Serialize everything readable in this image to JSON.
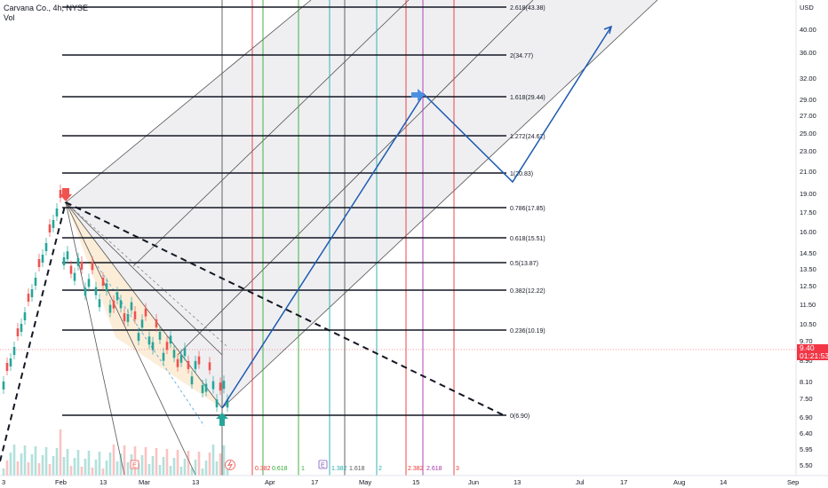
{
  "header": {
    "symbol": "Carvana Co., 4h, NYSE",
    "indicator": "Vol"
  },
  "price_axis": {
    "currency": "USD",
    "ticks": [
      "40.00",
      "36.00",
      "32.00",
      "29.00",
      "27.00",
      "25.00",
      "23.00",
      "21.00",
      "19.00",
      "17.50",
      "16.00",
      "14.50",
      "13.50",
      "12.50",
      "11.50",
      "10.50",
      "9.70",
      "8.90",
      "8.10",
      "7.50",
      "6.90",
      "6.40",
      "5.95",
      "5.50"
    ],
    "current_price": "9.40",
    "countdown": "01:21:53"
  },
  "time_axis": {
    "ticks": [
      "3",
      "Feb",
      "13",
      "Mar",
      "13",
      "Apr",
      "17",
      "May",
      "15",
      "Jun",
      "13",
      "Jul",
      "17",
      "Aug",
      "14",
      "Sep"
    ]
  },
  "fib_extension": [
    "0(6.90)",
    "0.236(10.19)",
    "0.382(12.22)",
    "0.5(13.87)",
    "0.618(15.51)",
    "0.786(17.85)",
    "1(20.83)",
    "1.272(24.62)",
    "1.618(29.44)",
    "2(34.77)",
    "2.618(43.38)"
  ],
  "fib_time_labels": [
    "0.382",
    "0.618",
    "1",
    "1.382",
    "1.618",
    "2",
    "2.382",
    "2.618",
    "3"
  ],
  "event_markers": [
    "E",
    "E"
  ],
  "colors": {
    "up": "#26a69a",
    "down": "#ef5350",
    "path": "#1e5bb0",
    "fib": "#131722",
    "price": "#f23645"
  }
}
